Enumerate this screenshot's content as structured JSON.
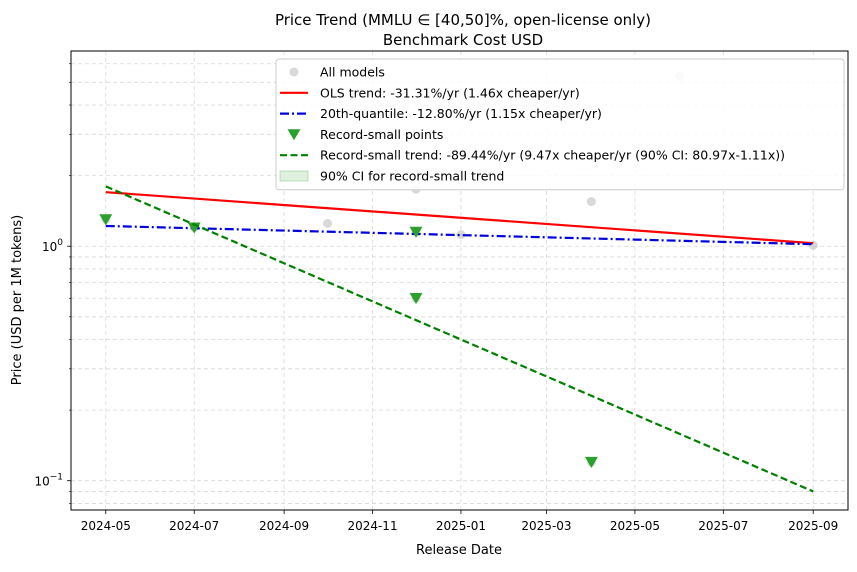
{
  "chart_data": {
    "type": "scatter",
    "title": "Price Trend (MMLU ∈ [40,50]%, open-license only)",
    "subtitle": "Benchmark Cost USD",
    "xlabel": "Release Date",
    "ylabel": "Price (USD per 1M tokens)",
    "x_scale": "date",
    "y_scale": "log",
    "xlim": [
      "2024-04-07",
      "2025-09-25"
    ],
    "ylim": [
      0.075,
      6.8
    ],
    "grid": true,
    "legend_position": "top-right",
    "x_ticks": [
      "2024-05",
      "2024-07",
      "2024-09",
      "2024-11",
      "2025-01",
      "2025-03",
      "2025-05",
      "2025-07",
      "2025-09"
    ],
    "y_ticks": [
      {
        "value": 0.1,
        "label": "10",
        "sup": "−1"
      },
      {
        "value": 1,
        "label": "10",
        "sup": "0"
      }
    ],
    "series": [
      {
        "name": "All models",
        "kind": "scatter",
        "marker": "circle",
        "color": "#aaaaaa",
        "points": [
          {
            "x": "2024-05-01",
            "y": 1.3
          },
          {
            "x": "2024-07-01",
            "y": 1.2
          },
          {
            "x": "2024-10-01",
            "y": 1.25
          },
          {
            "x": "2024-12-01",
            "y": 1.75
          },
          {
            "x": "2024-12-01",
            "y": 1.15
          },
          {
            "x": "2024-12-01",
            "y": 0.6
          },
          {
            "x": "2025-01-01",
            "y": 1.12
          },
          {
            "x": "2025-04-01",
            "y": 1.55
          },
          {
            "x": "2025-04-01",
            "y": 0.12
          },
          {
            "x": "2025-06-01",
            "y": 5.3
          },
          {
            "x": "2025-09-01",
            "y": 1.01
          }
        ]
      },
      {
        "name": "OLS trend: -31.31%/yr (1.46x cheaper/yr)",
        "kind": "line",
        "color": "#ff0000",
        "dash": "solid",
        "points": [
          {
            "x": "2024-05-01",
            "y": 1.7
          },
          {
            "x": "2025-09-01",
            "y": 1.03
          }
        ]
      },
      {
        "name": "20th-quantile: -12.80%/yr (1.15x cheaper/yr)",
        "kind": "line",
        "color": "#0000dd",
        "dash": "dashdot",
        "points": [
          {
            "x": "2024-05-01",
            "y": 1.22
          },
          {
            "x": "2025-09-01",
            "y": 1.02
          }
        ]
      },
      {
        "name": "Record-small points",
        "kind": "scatter",
        "marker": "triangle-down",
        "color": "#2ca02c",
        "points": [
          {
            "x": "2024-05-01",
            "y": 1.3
          },
          {
            "x": "2024-07-01",
            "y": 1.2
          },
          {
            "x": "2024-12-01",
            "y": 1.15
          },
          {
            "x": "2024-12-01",
            "y": 0.6
          },
          {
            "x": "2025-04-01",
            "y": 0.12
          }
        ]
      },
      {
        "name": "Record-small trend: -89.44%/yr (9.47x cheaper/yr (90% CI: 80.97x-1.11x))",
        "kind": "line",
        "color": "#008000",
        "dash": "dashed",
        "points": [
          {
            "x": "2024-05-01",
            "y": 1.8
          },
          {
            "x": "2025-09-01",
            "y": 0.09
          }
        ]
      },
      {
        "name": "90% CI for record-small trend",
        "kind": "band",
        "color": "#2ca02c",
        "points": []
      }
    ]
  }
}
